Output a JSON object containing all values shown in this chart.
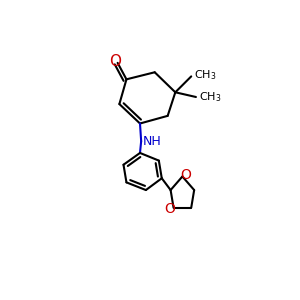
{
  "background_color": "#ffffff",
  "bond_color": "#000000",
  "bond_width": 1.5,
  "o_color": "#cc0000",
  "n_color": "#0000cc",
  "figsize": [
    3.0,
    3.0
  ],
  "dpi": 100,
  "xlim": [
    -1.8,
    2.2
  ],
  "ylim": [
    -2.8,
    2.2
  ]
}
